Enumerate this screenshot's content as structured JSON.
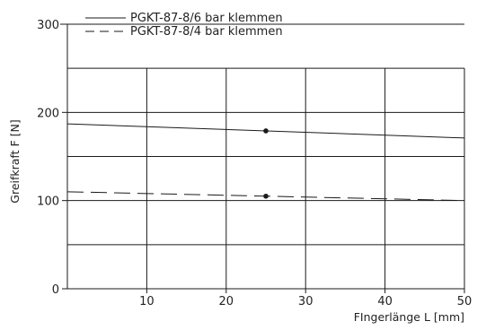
{
  "chart_data": {
    "type": "line",
    "xlabel": "FIngerlänge L [mm]",
    "ylabel": "Greifkraft F [N]",
    "xlim": [
      0,
      50
    ],
    "ylim": [
      0,
      300
    ],
    "x_ticks": [
      10,
      20,
      30,
      40,
      50
    ],
    "y_ticks": [
      0,
      100,
      200,
      300
    ],
    "grid": true,
    "legend_position": "top-left",
    "series": [
      {
        "name": "PGKT-87-8/6 bar klemmen",
        "style": "solid",
        "x": [
          0,
          50
        ],
        "y": [
          187,
          171
        ],
        "marker": {
          "x": 25,
          "y": 179
        }
      },
      {
        "name": "PGKT-87-8/4 bar klemmen",
        "style": "dashed",
        "x": [
          0,
          50
        ],
        "y": [
          110,
          100
        ],
        "marker": {
          "x": 25,
          "y": 105
        }
      }
    ],
    "colors": {
      "line": "#1a1a1a",
      "grid": "#1a1a1a"
    }
  }
}
